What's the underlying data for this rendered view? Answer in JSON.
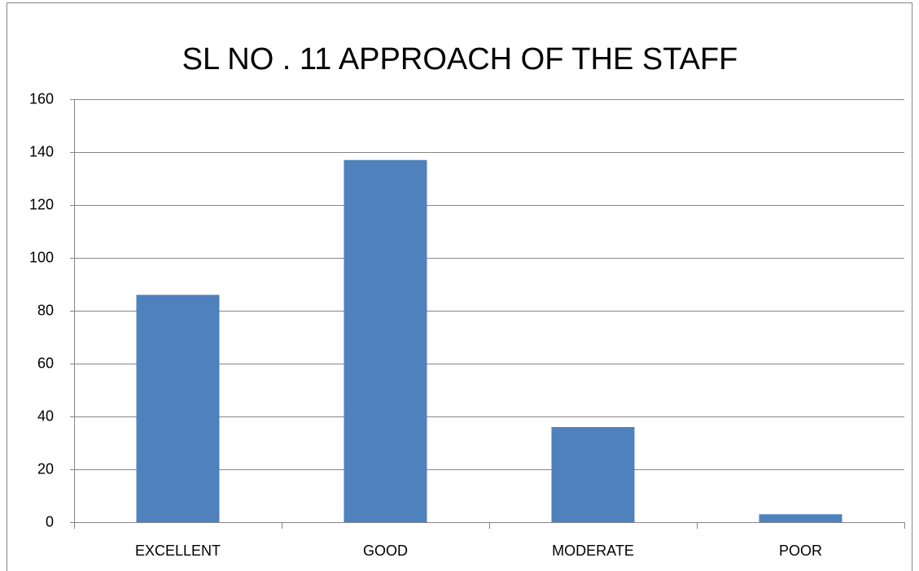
{
  "chart_data": {
    "type": "bar",
    "title": "SL NO . 11 APPROACH OF THE STAFF",
    "categories": [
      "EXCELLENT",
      "GOOD",
      "MODERATE",
      "POOR"
    ],
    "values": [
      86,
      137,
      36,
      3
    ],
    "color": "#4f81bd",
    "ylim": [
      0,
      160
    ],
    "yticks": [
      0,
      20,
      40,
      60,
      80,
      100,
      120,
      140,
      160
    ],
    "grid": true
  }
}
